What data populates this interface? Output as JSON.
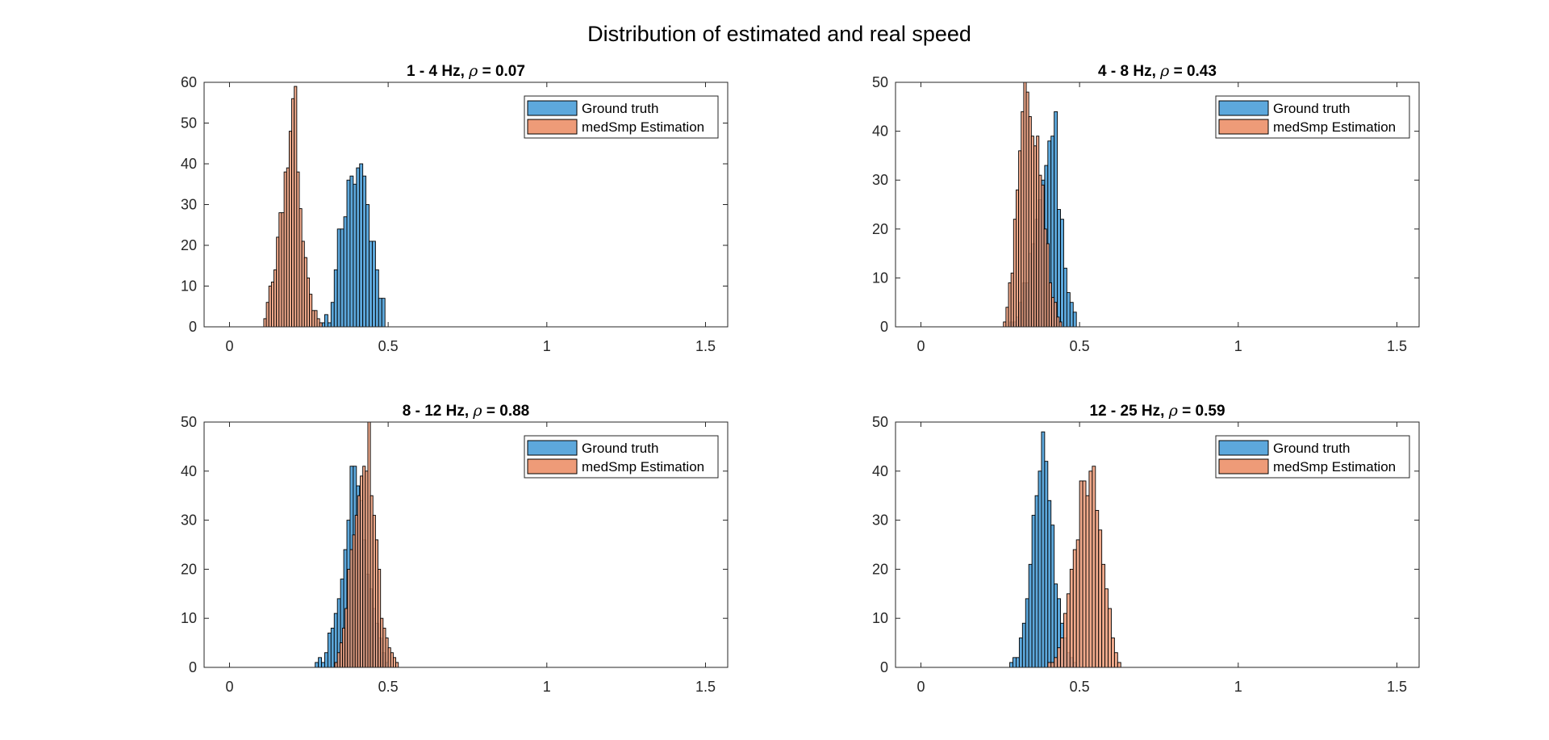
{
  "figure": {
    "title": "Distribution of estimated and real speed"
  },
  "colors": {
    "ground_truth": "#5DA8DC",
    "estimation": "#EE9B78",
    "bar_edge": "#000000",
    "axis": "#262626"
  },
  "chart_data": [
    {
      "type": "bar",
      "title": "1 - 4 Hz, ρ = 0.07",
      "title_parts": {
        "band": "1 - 4 Hz, ",
        "rho_symbol": "ρ",
        "rho_value": " = 0.07"
      },
      "xlim": [
        -0.08,
        1.57
      ],
      "ylim": [
        0,
        60
      ],
      "xticks": [
        0,
        0.5,
        1,
        1.5
      ],
      "xtick_labels": [
        "0",
        "0.5",
        "1",
        "1.5"
      ],
      "yticks": [
        0,
        10,
        20,
        30,
        40,
        50,
        60
      ],
      "ytick_labels": [
        "0",
        "10",
        "20",
        "30",
        "40",
        "50",
        "60"
      ],
      "legend": {
        "location": "top-right",
        "entries": [
          "Ground truth",
          "medSmp Estimation"
        ]
      },
      "series": [
        {
          "name": "Ground truth",
          "color_key": "ground_truth",
          "bin_width": 0.01,
          "bin_centers": [
            0.295,
            0.305,
            0.315,
            0.325,
            0.335,
            0.345,
            0.355,
            0.365,
            0.375,
            0.385,
            0.395,
            0.405,
            0.415,
            0.425,
            0.435,
            0.445,
            0.455,
            0.465,
            0.475,
            0.485
          ],
          "values": [
            1,
            3,
            1,
            6,
            14,
            24,
            24,
            27,
            36,
            37,
            35,
            39,
            40,
            37,
            30,
            21,
            21,
            14,
            7,
            7
          ]
        },
        {
          "name": "medSmp Estimation",
          "color_key": "estimation",
          "bin_width": 0.008,
          "bin_centers": [
            0.112,
            0.12,
            0.128,
            0.136,
            0.144,
            0.152,
            0.16,
            0.168,
            0.176,
            0.184,
            0.192,
            0.2,
            0.208,
            0.216,
            0.224,
            0.232,
            0.24,
            0.248,
            0.256,
            0.264,
            0.272,
            0.28,
            0.288
          ],
          "values": [
            2,
            6,
            10,
            11,
            14,
            22,
            28,
            28,
            38,
            39,
            48,
            56,
            59,
            38,
            29,
            21,
            17,
            12,
            8,
            4,
            4,
            2,
            1
          ]
        }
      ]
    },
    {
      "type": "bar",
      "title": "4 - 8 Hz, ρ = 0.43",
      "title_parts": {
        "band": "4 - 8 Hz, ",
        "rho_symbol": "ρ",
        "rho_value": " = 0.43"
      },
      "xlim": [
        -0.08,
        1.57
      ],
      "ylim": [
        0,
        50
      ],
      "xticks": [
        0,
        0.5,
        1,
        1.5
      ],
      "xtick_labels": [
        "0",
        "0.5",
        "1",
        "1.5"
      ],
      "yticks": [
        0,
        10,
        20,
        30,
        40,
        50
      ],
      "ytick_labels": [
        "0",
        "10",
        "20",
        "30",
        "40",
        "50"
      ],
      "legend": {
        "location": "top-right",
        "entries": [
          "Ground truth",
          "medSmp Estimation"
        ]
      },
      "series": [
        {
          "name": "Ground truth",
          "color_key": "ground_truth",
          "bin_width": 0.01,
          "bin_centers": [
            0.285,
            0.295,
            0.305,
            0.315,
            0.325,
            0.335,
            0.345,
            0.355,
            0.365,
            0.375,
            0.385,
            0.395,
            0.405,
            0.415,
            0.425,
            0.435,
            0.445,
            0.455,
            0.465,
            0.475,
            0.485
          ],
          "values": [
            1,
            1,
            2,
            5,
            9,
            9,
            15,
            17,
            22,
            26,
            30,
            33,
            38,
            39,
            44,
            24,
            22,
            12,
            7,
            5,
            3
          ]
        },
        {
          "name": "medSmp Estimation",
          "color_key": "estimation",
          "bin_width": 0.008,
          "bin_centers": [
            0.264,
            0.272,
            0.28,
            0.288,
            0.296,
            0.304,
            0.312,
            0.32,
            0.328,
            0.336,
            0.344,
            0.352,
            0.36,
            0.368,
            0.376,
            0.384,
            0.392,
            0.4,
            0.408,
            0.416,
            0.424,
            0.432,
            0.44
          ],
          "values": [
            1,
            4,
            9,
            11,
            22,
            28,
            36,
            44,
            50,
            48,
            43,
            39,
            37,
            39,
            31,
            29,
            20,
            17,
            9,
            6,
            5,
            2,
            1
          ]
        }
      ]
    },
    {
      "type": "bar",
      "title": "8 - 12 Hz, ρ = 0.88",
      "title_parts": {
        "band": "8 - 12 Hz, ",
        "rho_symbol": "ρ",
        "rho_value": " = 0.88"
      },
      "xlim": [
        -0.08,
        1.57
      ],
      "ylim": [
        0,
        50
      ],
      "xticks": [
        0,
        0.5,
        1,
        1.5
      ],
      "xtick_labels": [
        "0",
        "0.5",
        "1",
        "1.5"
      ],
      "yticks": [
        0,
        10,
        20,
        30,
        40,
        50
      ],
      "ytick_labels": [
        "0",
        "10",
        "20",
        "30",
        "40",
        "50"
      ],
      "legend": {
        "location": "top-right",
        "entries": [
          "Ground truth",
          "medSmp Estimation"
        ]
      },
      "series": [
        {
          "name": "Ground truth",
          "color_key": "ground_truth",
          "bin_width": 0.01,
          "bin_centers": [
            0.275,
            0.285,
            0.295,
            0.305,
            0.315,
            0.325,
            0.335,
            0.345,
            0.355,
            0.365,
            0.375,
            0.385,
            0.395,
            0.405,
            0.415,
            0.425,
            0.435,
            0.445,
            0.455,
            0.465,
            0.475,
            0.485,
            0.495
          ],
          "values": [
            1,
            2,
            1,
            3,
            7,
            8,
            11,
            14,
            18,
            24,
            30,
            41,
            41,
            37,
            34,
            26,
            19,
            16,
            12,
            9,
            6,
            3,
            1
          ]
        },
        {
          "name": "medSmp Estimation",
          "color_key": "estimation",
          "bin_width": 0.008,
          "bin_centers": [
            0.336,
            0.344,
            0.352,
            0.36,
            0.368,
            0.376,
            0.384,
            0.392,
            0.4,
            0.408,
            0.416,
            0.424,
            0.432,
            0.44,
            0.448,
            0.456,
            0.464,
            0.472,
            0.48,
            0.488,
            0.496,
            0.504,
            0.512,
            0.52,
            0.528
          ],
          "values": [
            1,
            3,
            5,
            8,
            12,
            20,
            24,
            27,
            31,
            35,
            39,
            41,
            40,
            50,
            35,
            31,
            26,
            20,
            10,
            8,
            6,
            4,
            3,
            2,
            1
          ]
        }
      ]
    },
    {
      "type": "bar",
      "title": "12 - 25 Hz, ρ = 0.59",
      "title_parts": {
        "band": "12 - 25 Hz, ",
        "rho_symbol": "ρ",
        "rho_value": " = 0.59"
      },
      "xlim": [
        -0.08,
        1.57
      ],
      "ylim": [
        0,
        50
      ],
      "xticks": [
        0,
        0.5,
        1,
        1.5
      ],
      "xtick_labels": [
        "0",
        "0.5",
        "1",
        "1.5"
      ],
      "yticks": [
        0,
        10,
        20,
        30,
        40,
        50
      ],
      "ytick_labels": [
        "0",
        "10",
        "20",
        "30",
        "40",
        "50"
      ],
      "legend": {
        "location": "top-right",
        "entries": [
          "Ground truth",
          "medSmp Estimation"
        ]
      },
      "series": [
        {
          "name": "Ground truth",
          "color_key": "ground_truth",
          "bin_width": 0.01,
          "bin_centers": [
            0.285,
            0.295,
            0.305,
            0.315,
            0.325,
            0.335,
            0.345,
            0.355,
            0.365,
            0.375,
            0.385,
            0.395,
            0.405,
            0.415,
            0.425,
            0.435,
            0.445,
            0.455,
            0.465,
            0.475,
            0.485
          ],
          "values": [
            1,
            2,
            2,
            6,
            9,
            14,
            21,
            31,
            35,
            40,
            48,
            42,
            34,
            29,
            17,
            14,
            9,
            6,
            3,
            2,
            1
          ]
        },
        {
          "name": "medSmp Estimation",
          "color_key": "estimation",
          "bin_width": 0.01,
          "bin_centers": [
            0.405,
            0.415,
            0.425,
            0.435,
            0.445,
            0.455,
            0.465,
            0.475,
            0.485,
            0.495,
            0.505,
            0.515,
            0.525,
            0.535,
            0.545,
            0.555,
            0.565,
            0.575,
            0.585,
            0.595,
            0.605,
            0.615,
            0.625
          ],
          "values": [
            1,
            1,
            2,
            4,
            6,
            11,
            15,
            20,
            24,
            26,
            38,
            38,
            35,
            40,
            41,
            32,
            28,
            21,
            16,
            12,
            6,
            3,
            1
          ]
        }
      ]
    }
  ]
}
